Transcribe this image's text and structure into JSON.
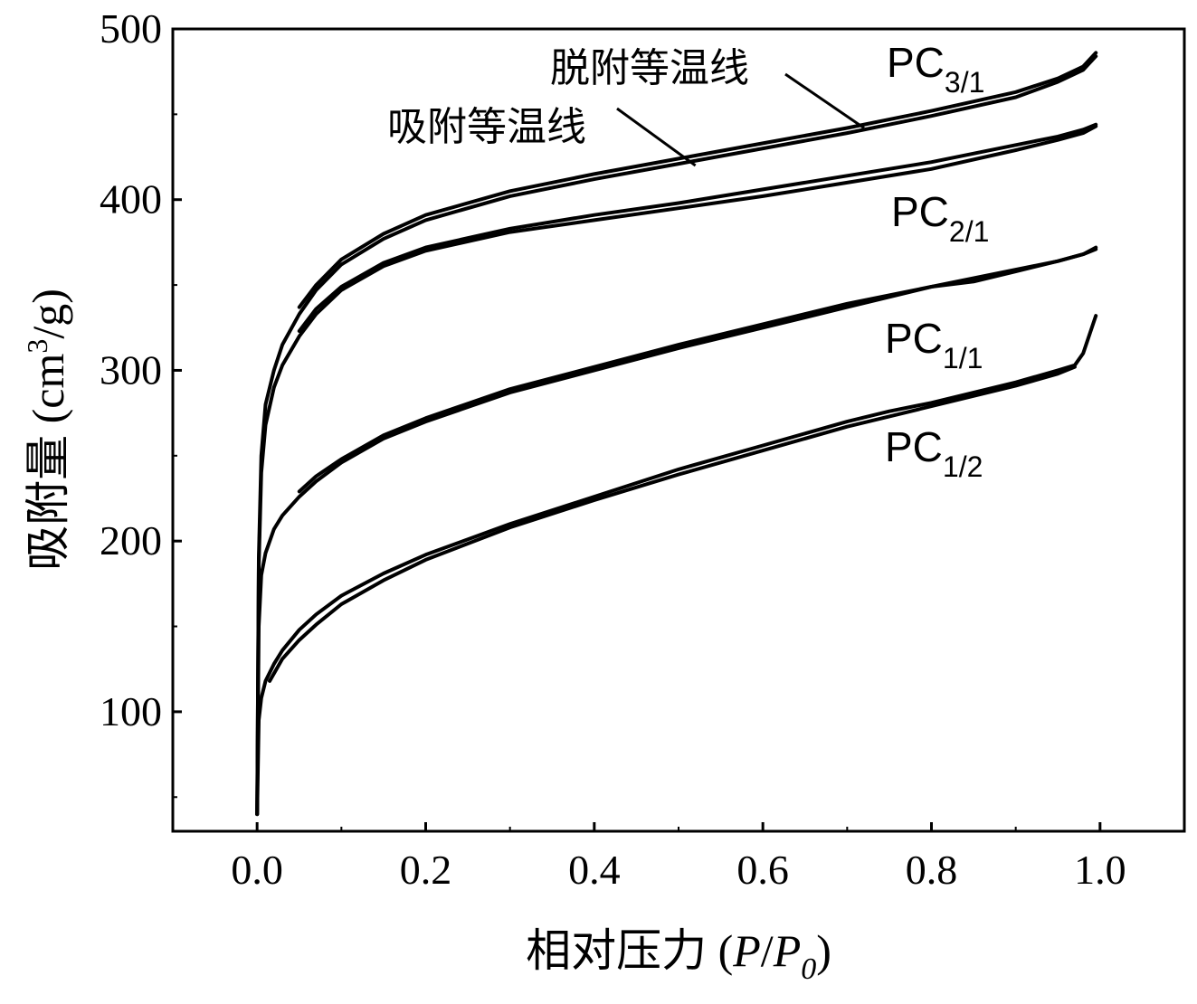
{
  "chart_data": {
    "type": "line",
    "xlabel_prefix": "相对压力 (",
    "xlabel_var": "P",
    "xlabel_slash": "/",
    "xlabel_var2": "P",
    "xlabel_sub": "0",
    "xlabel_suffix": ")",
    "ylabel_prefix": "吸附量 (cm",
    "ylabel_sup": "3",
    "ylabel_suffix": "/g)",
    "xlim": [
      -0.1,
      1.1
    ],
    "ylim": [
      30,
      500
    ],
    "xticks": [
      0.0,
      0.2,
      0.4,
      0.6,
      0.8,
      1.0
    ],
    "xtick_labels": [
      "0.0",
      "0.2",
      "0.4",
      "0.6",
      "0.8",
      "1.0"
    ],
    "yticks": [
      100,
      200,
      300,
      400,
      500
    ],
    "ytick_labels": [
      "100",
      "200",
      "300",
      "400",
      "500"
    ],
    "grid": false,
    "line_color": "#000000",
    "series": [
      {
        "name": "PC3/1",
        "label_main": "PC",
        "label_sub": "3/1",
        "adsorption": {
          "x": [
            0.0,
            0.002,
            0.005,
            0.01,
            0.02,
            0.03,
            0.05,
            0.07,
            0.1,
            0.15,
            0.2,
            0.3,
            0.4,
            0.5,
            0.6,
            0.7,
            0.8,
            0.9,
            0.95,
            0.98,
            0.995
          ],
          "y": [
            40,
            190,
            250,
            280,
            300,
            315,
            333,
            347,
            362,
            377,
            388,
            402,
            412,
            421,
            430,
            439,
            449,
            460,
            469,
            476,
            484
          ]
        },
        "desorption": {
          "x": [
            0.995,
            0.98,
            0.95,
            0.9,
            0.8,
            0.7,
            0.6,
            0.5,
            0.4,
            0.3,
            0.2,
            0.15,
            0.1,
            0.07,
            0.05
          ],
          "y": [
            486,
            478,
            471,
            463,
            452,
            442,
            433,
            424,
            415,
            405,
            391,
            380,
            365,
            350,
            337
          ]
        }
      },
      {
        "name": "PC2/1",
        "label_main": "PC",
        "label_sub": "2/1",
        "adsorption": {
          "x": [
            0.0,
            0.002,
            0.005,
            0.01,
            0.02,
            0.03,
            0.05,
            0.07,
            0.1,
            0.15,
            0.2,
            0.3,
            0.4,
            0.5,
            0.6,
            0.7,
            0.8,
            0.9,
            0.95,
            0.98,
            0.995
          ],
          "y": [
            40,
            185,
            240,
            268,
            290,
            303,
            320,
            333,
            347,
            361,
            370,
            381,
            388,
            395,
            402,
            410,
            418,
            429,
            435,
            439,
            443
          ]
        },
        "desorption": {
          "x": [
            0.995,
            0.98,
            0.95,
            0.9,
            0.8,
            0.7,
            0.6,
            0.5,
            0.4,
            0.3,
            0.2,
            0.15,
            0.1,
            0.07,
            0.05
          ],
          "y": [
            444,
            441,
            437,
            432,
            422,
            414,
            406,
            398,
            391,
            383,
            372,
            363,
            349,
            336,
            323
          ]
        }
      },
      {
        "name": "PC1/1",
        "label_main": "PC",
        "label_sub": "1/1",
        "adsorption": {
          "x": [
            0.0,
            0.002,
            0.005,
            0.01,
            0.02,
            0.03,
            0.05,
            0.07,
            0.1,
            0.15,
            0.2,
            0.3,
            0.4,
            0.5,
            0.6,
            0.7,
            0.8,
            0.9,
            0.95,
            0.98,
            0.995
          ],
          "y": [
            40,
            150,
            180,
            193,
            207,
            215,
            226,
            235,
            246,
            260,
            270,
            287,
            300,
            313,
            325,
            337,
            349,
            359,
            364,
            368,
            371
          ]
        },
        "desorption": {
          "x": [
            0.995,
            0.98,
            0.95,
            0.9,
            0.85,
            0.8,
            0.7,
            0.6,
            0.5,
            0.4,
            0.3,
            0.2,
            0.15,
            0.1,
            0.07,
            0.05
          ],
          "y": [
            372,
            368,
            364,
            358,
            352,
            349,
            339,
            327,
            315,
            302,
            289,
            272,
            262,
            248,
            238,
            229
          ]
        }
      },
      {
        "name": "PC1/2",
        "label_main": "PC",
        "label_sub": "1/2",
        "adsorption": {
          "x": [
            0.0,
            0.002,
            0.005,
            0.01,
            0.02,
            0.03,
            0.05,
            0.07,
            0.1,
            0.15,
            0.2,
            0.3,
            0.4,
            0.5,
            0.6,
            0.7,
            0.75,
            0.8,
            0.9,
            0.95,
            0.97,
            0.98,
            0.995
          ],
          "y": [
            40,
            95,
            108,
            118,
            128,
            136,
            148,
            157,
            168,
            181,
            192,
            210,
            226,
            242,
            256,
            270,
            276,
            281,
            293,
            300,
            303,
            310,
            332
          ]
        },
        "desorption": {
          "x": [
            0.97,
            0.95,
            0.9,
            0.8,
            0.75,
            0.7,
            0.6,
            0.5,
            0.4,
            0.3,
            0.2,
            0.15,
            0.1,
            0.07,
            0.05,
            0.03,
            0.015
          ],
          "y": [
            302,
            298,
            291,
            279,
            273,
            267,
            253,
            239,
            224,
            208,
            189,
            177,
            163,
            151,
            142,
            131,
            118
          ]
        }
      }
    ],
    "annotations": [
      {
        "text": "脱附等温线",
        "target_series": 0,
        "target_branch": "desorption",
        "target_x": 0.72,
        "target_y": 442
      },
      {
        "text": "吸附等温线",
        "target_series": 0,
        "target_branch": "adsorption",
        "target_x": 0.52,
        "target_y": 420
      }
    ]
  }
}
